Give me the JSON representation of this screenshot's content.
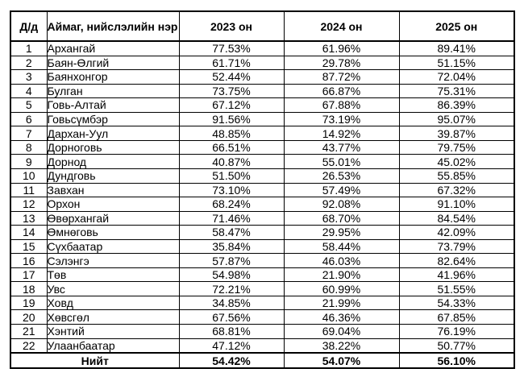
{
  "table": {
    "columns": {
      "num": "Д/д",
      "name": "Аймаг,\nнийслэлийн нэр",
      "y2023": "2023 он",
      "y2024": "2024 он",
      "y2025": "2025 он"
    },
    "rows": [
      {
        "num": "1",
        "name": "Архангай",
        "y2023": "77.53%",
        "y2024": "61.96%",
        "y2025": "89.41%"
      },
      {
        "num": "2",
        "name": "Баян-Өлгий",
        "y2023": "61.71%",
        "y2024": "29.78%",
        "y2025": "51.15%"
      },
      {
        "num": "3",
        "name": "Баянхонгор",
        "y2023": "52.44%",
        "y2024": "87.72%",
        "y2025": "72.04%"
      },
      {
        "num": "4",
        "name": "Булган",
        "y2023": "73.75%",
        "y2024": "66.87%",
        "y2025": "75.31%"
      },
      {
        "num": "5",
        "name": "Говь-Алтай",
        "y2023": "67.12%",
        "y2024": "67.88%",
        "y2025": "86.39%"
      },
      {
        "num": "6",
        "name": "Говьсүмбэр",
        "y2023": "91.56%",
        "y2024": "73.19%",
        "y2025": "95.07%"
      },
      {
        "num": "7",
        "name": "Дархан-Уул",
        "y2023": "48.85%",
        "y2024": "14.92%",
        "y2025": "39.87%"
      },
      {
        "num": "8",
        "name": "Дорноговь",
        "y2023": "66.51%",
        "y2024": "43.77%",
        "y2025": "79.75%"
      },
      {
        "num": "9",
        "name": "Дорнод",
        "y2023": "40.87%",
        "y2024": "55.01%",
        "y2025": "45.02%"
      },
      {
        "num": "10",
        "name": "Дундговь",
        "y2023": "51.50%",
        "y2024": "26.53%",
        "y2025": "55.85%"
      },
      {
        "num": "11",
        "name": "Завхан",
        "y2023": "73.10%",
        "y2024": "57.49%",
        "y2025": "67.32%"
      },
      {
        "num": "12",
        "name": "Орхон",
        "y2023": "68.24%",
        "y2024": "92.08%",
        "y2025": "91.10%"
      },
      {
        "num": "13",
        "name": "Өвөрхангай",
        "y2023": "71.46%",
        "y2024": "68.70%",
        "y2025": "84.54%"
      },
      {
        "num": "14",
        "name": "Өмнөговь",
        "y2023": "58.47%",
        "y2024": "29.95%",
        "y2025": "42.09%"
      },
      {
        "num": "15",
        "name": "Сүхбаатар",
        "y2023": "35.84%",
        "y2024": "58.44%",
        "y2025": "73.79%"
      },
      {
        "num": "16",
        "name": "Сэлэнгэ",
        "y2023": "57.87%",
        "y2024": "46.03%",
        "y2025": "82.64%"
      },
      {
        "num": "17",
        "name": "Төв",
        "y2023": "54.98%",
        "y2024": "21.90%",
        "y2025": "41.96%"
      },
      {
        "num": "18",
        "name": "Увс",
        "y2023": "72.21%",
        "y2024": "60.99%",
        "y2025": "51.55%"
      },
      {
        "num": "19",
        "name": "Ховд",
        "y2023": "34.85%",
        "y2024": "21.99%",
        "y2025": "54.33%"
      },
      {
        "num": "20",
        "name": "Хөвсгөл",
        "y2023": "67.56%",
        "y2024": "46.36%",
        "y2025": "67.85%"
      },
      {
        "num": "21",
        "name": "Хэнтий",
        "y2023": "68.81%",
        "y2024": "69.04%",
        "y2025": "76.19%"
      },
      {
        "num": "22",
        "name": "Улаанбаатар",
        "y2023": "47.12%",
        "y2024": "38.22%",
        "y2025": "50.77%"
      }
    ],
    "total": {
      "label": "Нийт",
      "y2023": "54.42%",
      "y2024": "54.07%",
      "y2025": "56.10%"
    }
  }
}
